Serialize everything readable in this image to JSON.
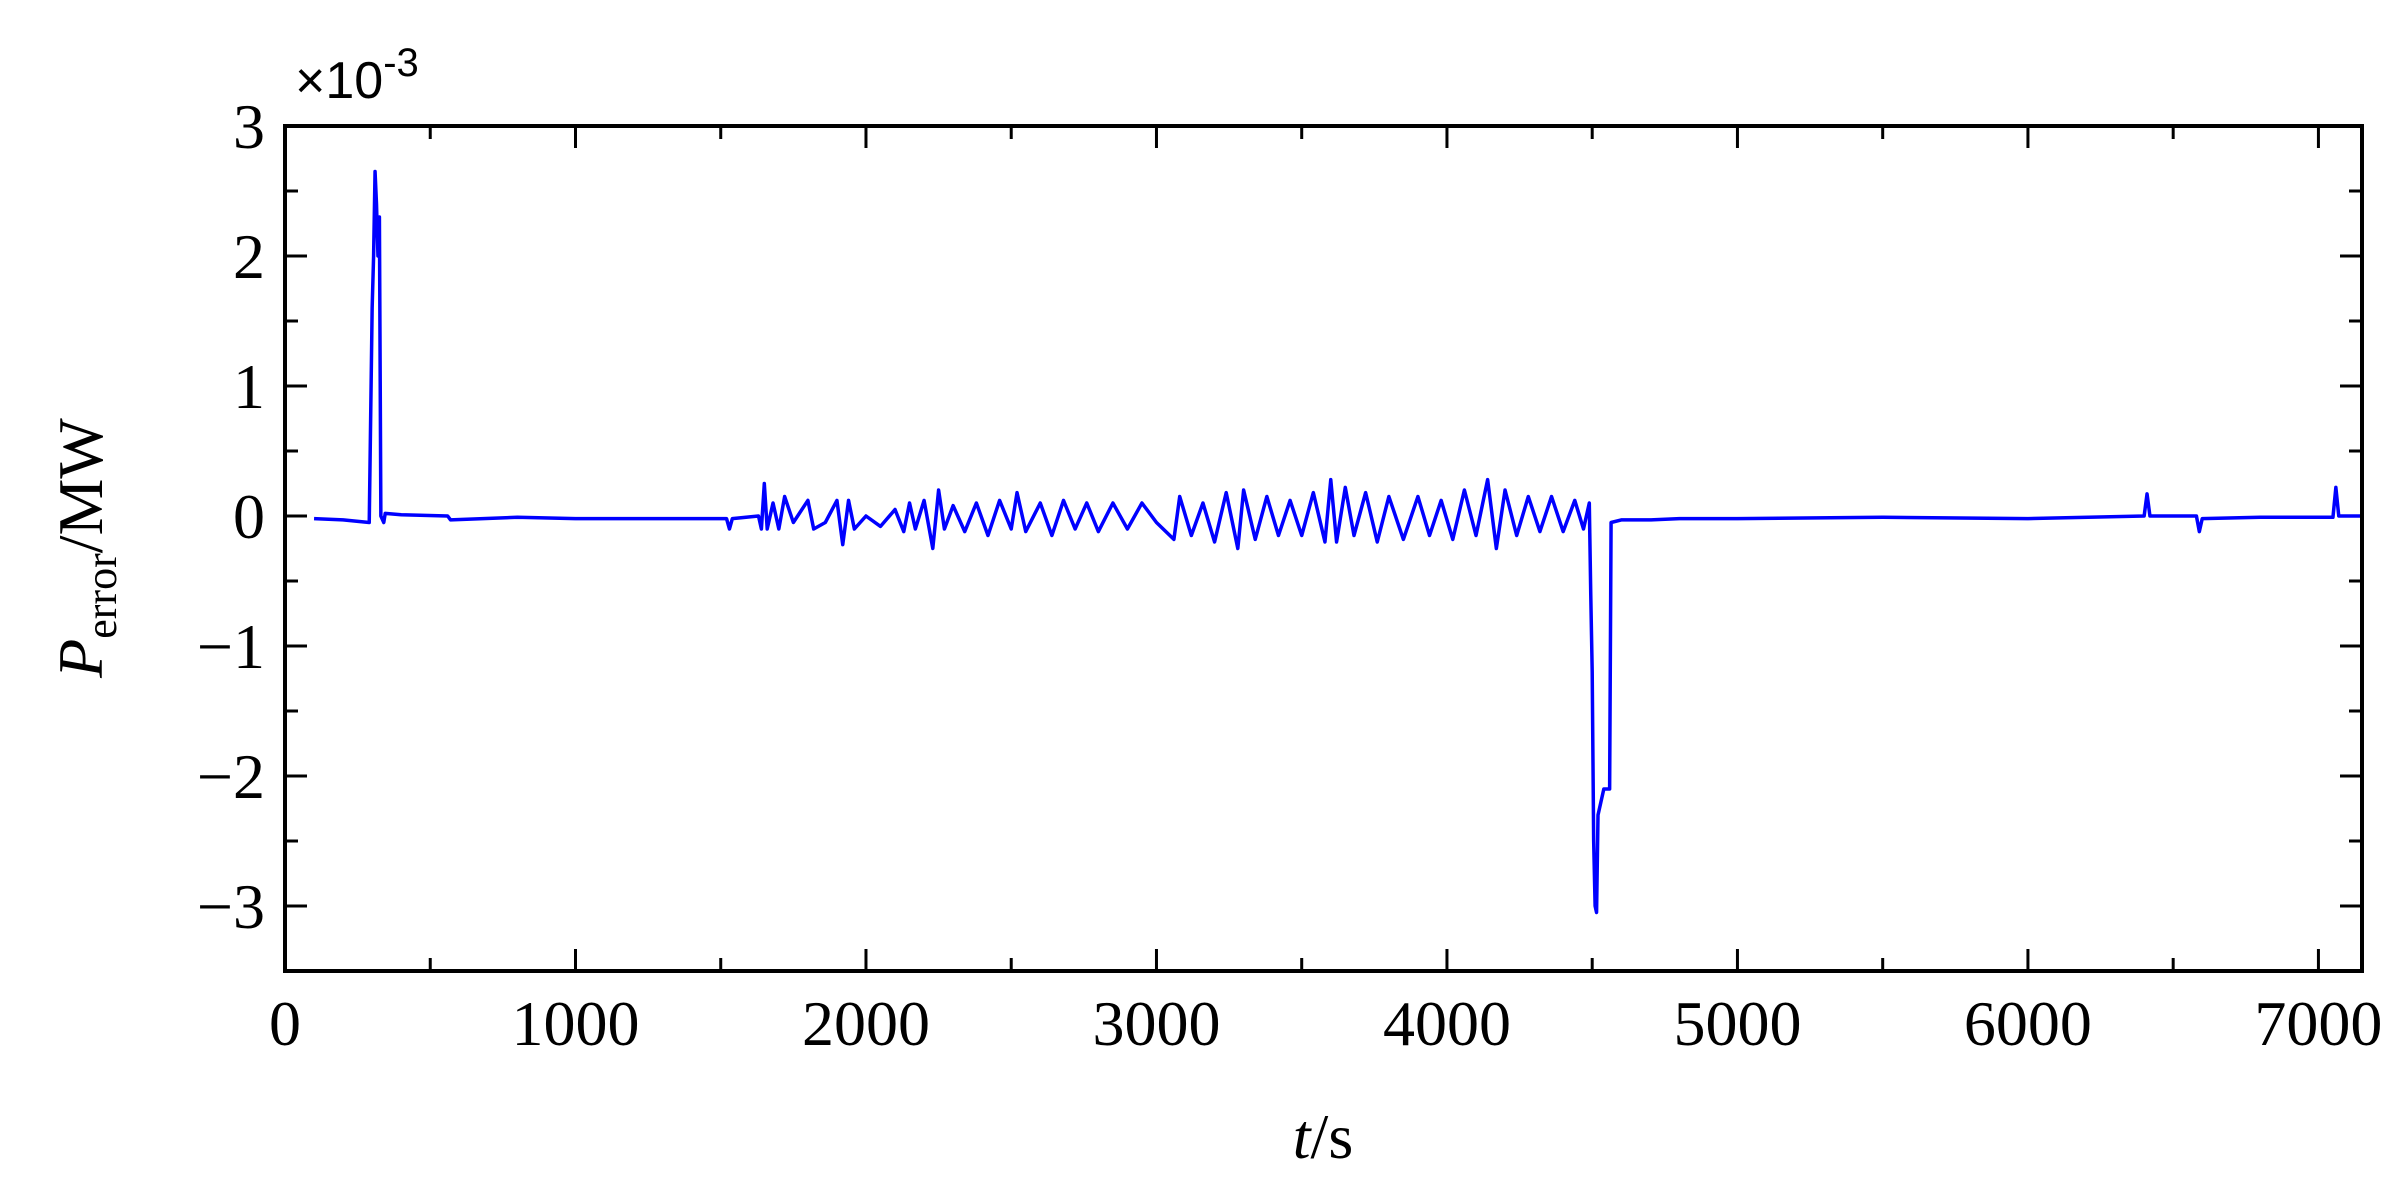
{
  "chart_data": {
    "type": "line",
    "y_label": {
      "symbol": "P",
      "subscript": "error",
      "unit": "/MW"
    },
    "x_label": {
      "symbol": "t",
      "unit": "/s"
    },
    "offset_text": {
      "base": "×10",
      "exponent": "-3"
    },
    "xlim": [
      0,
      7150
    ],
    "ylim": [
      -3.5,
      3
    ],
    "xticks": [
      0,
      1000,
      2000,
      3000,
      4000,
      5000,
      6000,
      7000
    ],
    "xminorticks": [
      500,
      1500,
      2500,
      3500,
      4500,
      5500,
      6500
    ],
    "yticks": [
      {
        "value": -3,
        "label": "−3"
      },
      {
        "value": -2,
        "label": "−2"
      },
      {
        "value": -1,
        "label": "−1"
      },
      0,
      1,
      2,
      3
    ],
    "yminorticks": [
      -2.5,
      -1.5,
      -0.5,
      0.5,
      1.5,
      2.5
    ],
    "x": [
      100,
      200,
      290,
      300,
      305,
      310,
      315,
      320,
      325,
      330,
      340,
      345,
      400,
      560,
      570,
      800,
      1000,
      1300,
      1520,
      1530,
      1540,
      1630,
      1640,
      1650,
      1660,
      1680,
      1700,
      1720,
      1750,
      1800,
      1820,
      1860,
      1900,
      1920,
      1940,
      1960,
      2000,
      2050,
      2100,
      2130,
      2150,
      2170,
      2200,
      2230,
      2250,
      2270,
      2300,
      2340,
      2380,
      2420,
      2460,
      2500,
      2520,
      2550,
      2600,
      2640,
      2680,
      2720,
      2760,
      2800,
      2850,
      2900,
      2950,
      3000,
      3060,
      3080,
      3120,
      3160,
      3200,
      3240,
      3280,
      3300,
      3340,
      3380,
      3420,
      3460,
      3500,
      3540,
      3580,
      3600,
      3620,
      3650,
      3680,
      3720,
      3760,
      3800,
      3850,
      3900,
      3940,
      3980,
      4020,
      4060,
      4100,
      4140,
      4170,
      4200,
      4240,
      4280,
      4320,
      4360,
      4400,
      4440,
      4470,
      4490,
      4495,
      4500,
      4505,
      4510,
      4515,
      4520,
      4530,
      4540,
      4560,
      4565,
      4600,
      4700,
      4800,
      5000,
      5500,
      6000,
      6400,
      6410,
      6420,
      6580,
      6590,
      6600,
      6800,
      7050,
      7060,
      7070,
      7150
    ],
    "series": [
      {
        "color": "#0000ff",
        "values": [
          -0.02,
          -0.03,
          -0.05,
          1.6,
          2.0,
          2.65,
          2.4,
          2.0,
          2.3,
          0.0,
          -0.05,
          0.02,
          0.01,
          0.0,
          -0.03,
          -0.01,
          -0.02,
          -0.02,
          -0.02,
          -0.1,
          -0.02,
          0.0,
          -0.1,
          0.25,
          -0.1,
          0.1,
          -0.1,
          0.15,
          -0.05,
          0.12,
          -0.1,
          -0.05,
          0.12,
          -0.22,
          0.12,
          -0.1,
          0.0,
          -0.08,
          0.05,
          -0.12,
          0.1,
          -0.1,
          0.12,
          -0.25,
          0.2,
          -0.1,
          0.08,
          -0.12,
          0.1,
          -0.15,
          0.12,
          -0.1,
          0.18,
          -0.12,
          0.1,
          -0.15,
          0.12,
          -0.1,
          0.1,
          -0.12,
          0.1,
          -0.1,
          0.1,
          -0.05,
          -0.18,
          0.15,
          -0.15,
          0.1,
          -0.2,
          0.18,
          -0.25,
          0.2,
          -0.18,
          0.15,
          -0.15,
          0.12,
          -0.15,
          0.18,
          -0.2,
          0.28,
          -0.2,
          0.22,
          -0.15,
          0.18,
          -0.2,
          0.15,
          -0.18,
          0.15,
          -0.15,
          0.12,
          -0.18,
          0.2,
          -0.15,
          0.28,
          -0.25,
          0.2,
          -0.15,
          0.15,
          -0.12,
          0.15,
          -0.12,
          0.12,
          -0.1,
          0.1,
          -0.6,
          -1.2,
          -2.5,
          -3.0,
          -3.05,
          -2.3,
          -2.2,
          -2.1,
          -2.1,
          -0.05,
          -0.03,
          -0.03,
          -0.02,
          -0.02,
          -0.01,
          -0.02,
          0.0,
          0.17,
          0.0,
          0.0,
          -0.12,
          -0.02,
          -0.01,
          -0.01,
          0.22,
          0.0,
          0.0
        ]
      }
    ]
  }
}
